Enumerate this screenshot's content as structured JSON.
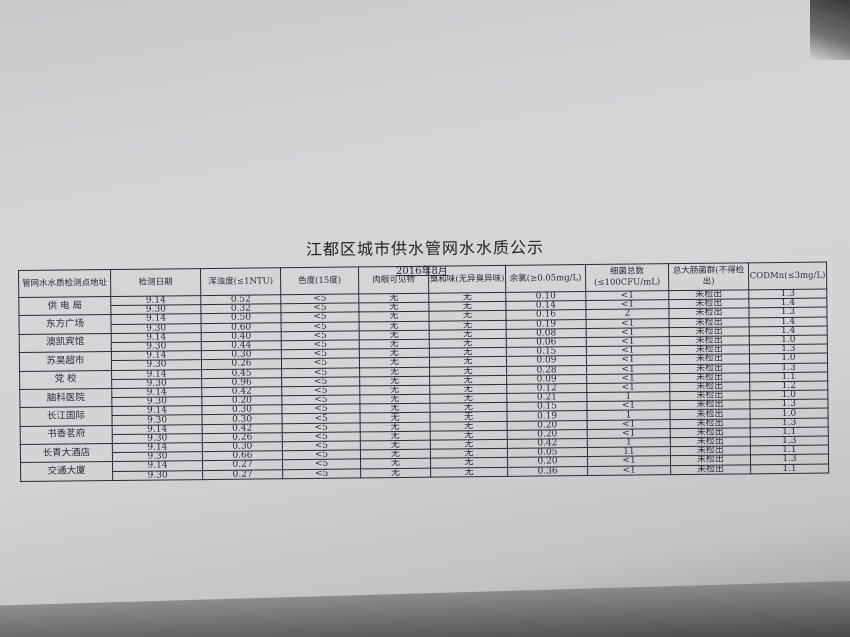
{
  "title": "江都区城市供水管网水水质公示",
  "date": "2016年8月",
  "headers": [
    "管网水水质检测点地址",
    "检测日期",
    "浑浊度(≤1NTU)",
    "色度(15度)",
    "肉眼可见物",
    "臭和味(无异臭异味)",
    "余氯(≥0.05mg/L)",
    "细菌总数(≤100CFU/mL)",
    "总大肠菌群(不得检出)",
    "CODMn(≤3mg/L)"
  ],
  "sites": [
    {
      "name": "供 电 局",
      "rows": [
        [
          "9.14",
          "0.52",
          "<5",
          "无",
          "无",
          "0.10",
          "<1",
          "未检出",
          "1.3"
        ],
        [
          "9.30",
          "0.32",
          "<5",
          "无",
          "无",
          "0.14",
          "<1",
          "未检出",
          "1.4"
        ]
      ]
    },
    {
      "name": "东方广场",
      "rows": [
        [
          "9.14",
          "0.50",
          "<5",
          "无",
          "无",
          "0.16",
          "2",
          "未检出",
          "1.3"
        ],
        [
          "9.30",
          "0.60",
          "<5",
          "无",
          "无",
          "0.19",
          "<1",
          "未检出",
          "1.4"
        ]
      ]
    },
    {
      "name": "澳凯宾馆",
      "rows": [
        [
          "9.14",
          "0.40",
          "<5",
          "无",
          "无",
          "0.08",
          "<1",
          "未检出",
          "1.4"
        ],
        [
          "9.30",
          "0.44",
          "<5",
          "无",
          "无",
          "0.06",
          "<1",
          "未检出",
          "1.0"
        ]
      ]
    },
    {
      "name": "苏昊超市",
      "rows": [
        [
          "9.14",
          "0.30",
          "<5",
          "无",
          "无",
          "0.15",
          "<1",
          "未检出",
          "1.3"
        ],
        [
          "9.30",
          "0.26",
          "<5",
          "无",
          "无",
          "0.09",
          "<1",
          "未检出",
          "1.0"
        ]
      ]
    },
    {
      "name": "党  校",
      "rows": [
        [
          "9.14",
          "0.45",
          "<5",
          "无",
          "无",
          "0.28",
          "<1",
          "未检出",
          "1.3"
        ],
        [
          "9.30",
          "0.96",
          "<5",
          "无",
          "无",
          "0.09",
          "<1",
          "未检出",
          "1.1"
        ]
      ]
    },
    {
      "name": "脑科医院",
      "rows": [
        [
          "9.14",
          "0.42",
          "<5",
          "无",
          "无",
          "0.12",
          "<1",
          "未检出",
          "1.2"
        ],
        [
          "9.30",
          "0.20",
          "<5",
          "无",
          "无",
          "0.21",
          "1",
          "未检出",
          "1.0"
        ]
      ]
    },
    {
      "name": "长江国际",
      "rows": [
        [
          "9.14",
          "0.30",
          "<5",
          "无",
          "无",
          "0.15",
          "<1",
          "未检出",
          "1.3"
        ],
        [
          "9.30",
          "0.30",
          "<5",
          "无",
          "无",
          "0.19",
          "1",
          "未检出",
          "1.0"
        ]
      ]
    },
    {
      "name": "书香茗府",
      "rows": [
        [
          "9.14",
          "0.42",
          "<5",
          "无",
          "无",
          "0.20",
          "<1",
          "未检出",
          "1.3"
        ],
        [
          "9.30",
          "0.26",
          "<5",
          "无",
          "无",
          "0.20",
          "<1",
          "未检出",
          "1.1"
        ]
      ]
    },
    {
      "name": "长青大酒店",
      "rows": [
        [
          "9.14",
          "0.30",
          "<5",
          "无",
          "无",
          "0.42",
          "1",
          "未检出",
          "1.3"
        ],
        [
          "9.30",
          "0.66",
          "<5",
          "无",
          "无",
          "0.05",
          "11",
          "未检出",
          "1.1"
        ]
      ]
    },
    {
      "name": "交通大厦",
      "rows": [
        [
          "9.14",
          "0.27",
          "<5",
          "无",
          "无",
          "0.20",
          "<1",
          "未检出",
          "1.3"
        ],
        [
          "9.30",
          "0.27",
          "<5",
          "无",
          "无",
          "0.36",
          "<1",
          "未检出",
          "1.1"
        ]
      ]
    }
  ]
}
